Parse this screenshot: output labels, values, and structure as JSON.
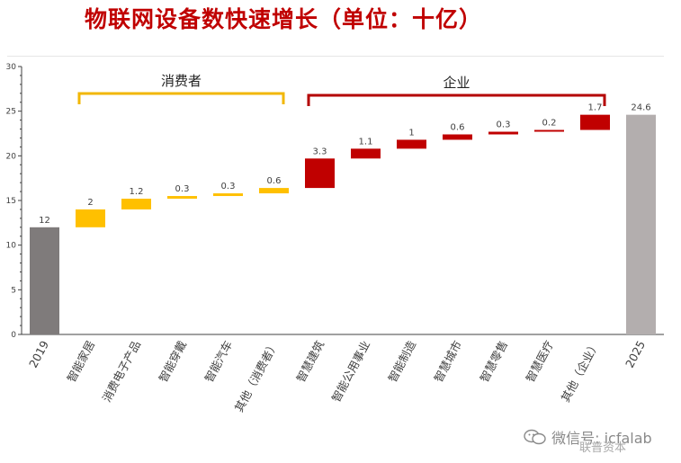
{
  "chart_data": {
    "type": "bar",
    "subtype": "waterfall",
    "title": "物联网设备数快速增长（单位：十亿）",
    "categories": [
      "2019",
      "智能家居",
      "消费电子产品",
      "智能穿戴",
      "智能汽车",
      "其他（消费者）",
      "智慧建筑",
      "智能公用事业",
      "智能制造",
      "智慧城市",
      "智慧零售",
      "智慧医疗",
      "其他（企业）",
      "2025"
    ],
    "values": [
      12,
      2,
      1.2,
      0.3,
      0.3,
      0.6,
      3.3,
      1.1,
      1,
      0.6,
      0.3,
      0.2,
      1.7,
      24.6
    ],
    "value_labels": [
      "12",
      "2",
      "1.2",
      "0.3",
      "0.3",
      "0.6",
      "3.3",
      "1.1",
      "1",
      "0.6",
      "0.3",
      "0.2",
      "1.7",
      "24.6"
    ],
    "bar_kind": [
      "total",
      "consumer",
      "consumer",
      "consumer",
      "consumer",
      "consumer",
      "enterprise",
      "enterprise",
      "enterprise",
      "enterprise",
      "enterprise",
      "enterprise",
      "enterprise",
      "total"
    ],
    "groups": [
      {
        "label": "消费者",
        "from": 1,
        "to": 5,
        "color": "#f2b705"
      },
      {
        "label": "企业",
        "from": 6,
        "to": 12,
        "color": "#b40000"
      }
    ],
    "colors": {
      "start_total": "#7f7b7b",
      "end_total": "#b3aeae",
      "consumer": "#ffc000",
      "enterprise": "#c00000",
      "title": "#c00000"
    },
    "ylim": [
      0,
      30
    ],
    "yticks": [
      0,
      5,
      10,
      15,
      20,
      25,
      30
    ],
    "xlabel": "",
    "ylabel": "",
    "grid": false,
    "legend": "none"
  },
  "watermark": {
    "text": "微信号: icfalab",
    "sub": "联普资本"
  }
}
